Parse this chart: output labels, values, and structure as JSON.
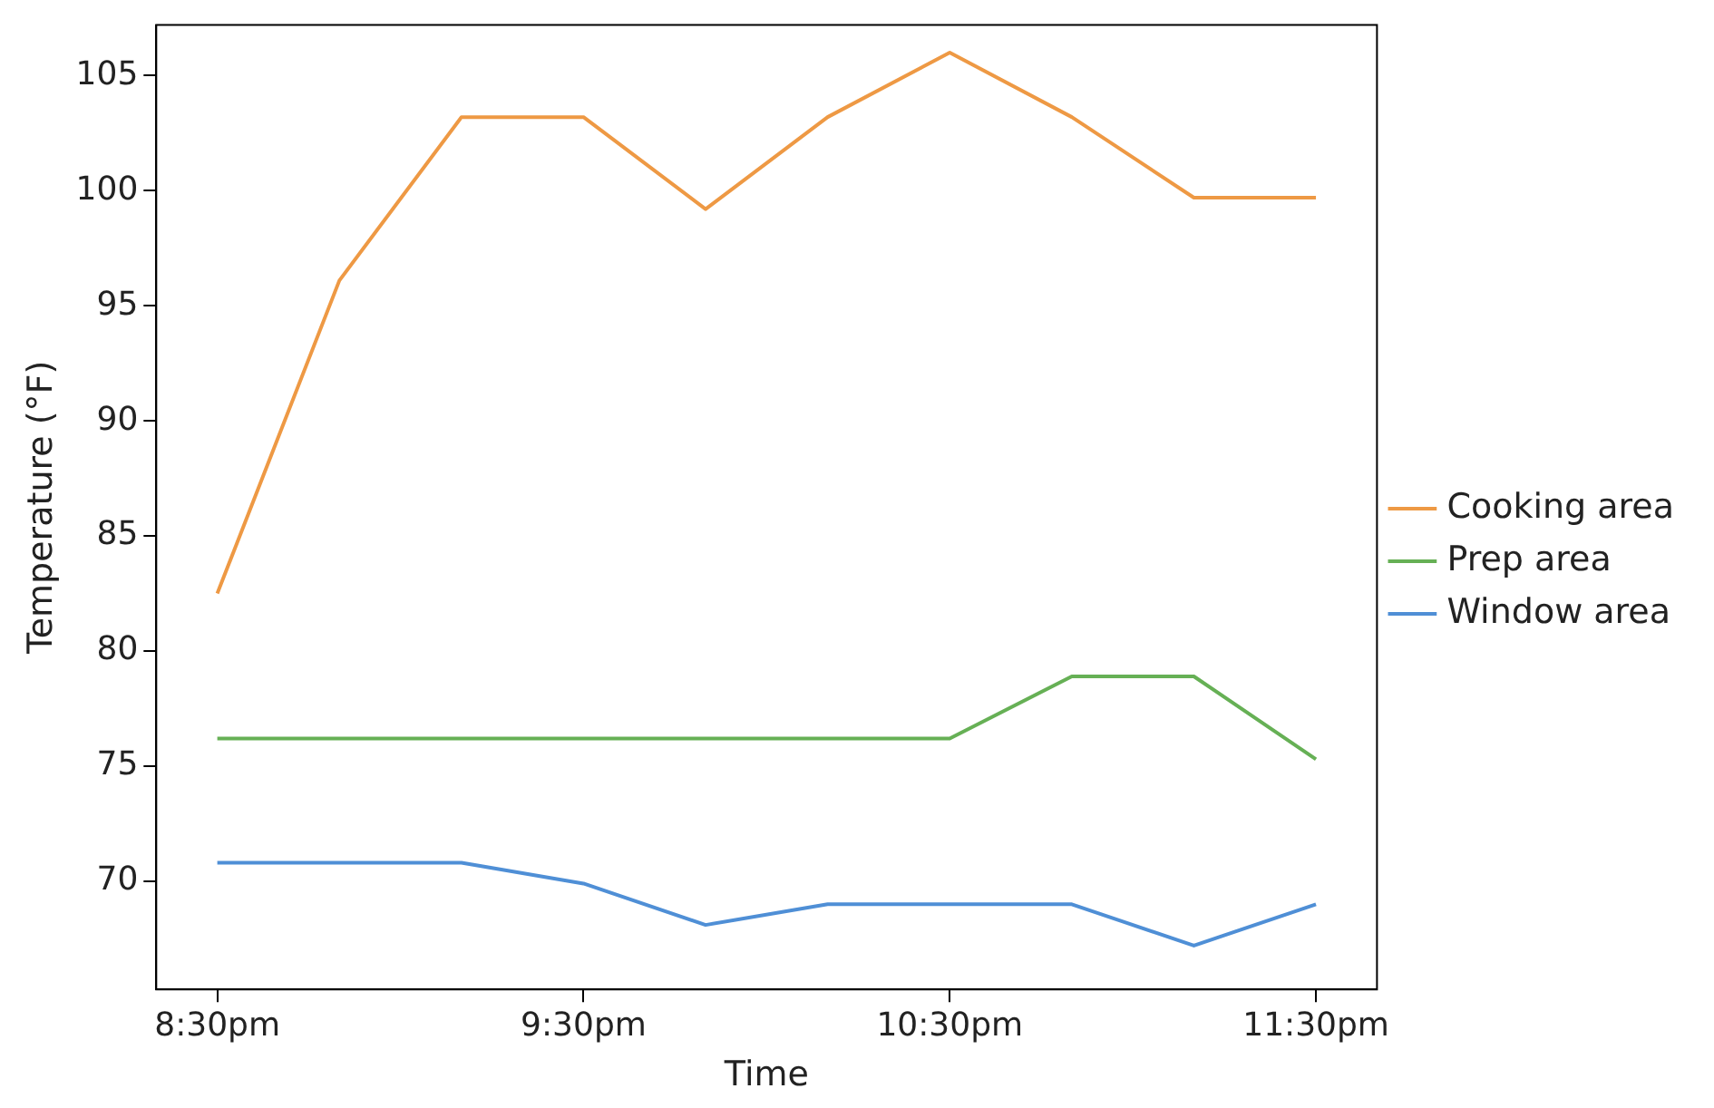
{
  "chart_data": {
    "type": "line",
    "xlabel": "Time",
    "ylabel": "Temperature (°F)",
    "categories": [
      "8:30pm",
      null,
      null,
      "9:30pm",
      null,
      null,
      "10:30pm",
      null,
      null,
      "11:30pm"
    ],
    "series": [
      {
        "name": "Cooking area",
        "color": "#ee9944",
        "values": [
          82.5,
          96.1,
          103.2,
          103.2,
          99.2,
          103.2,
          106.0,
          103.2,
          99.7,
          99.7
        ]
      },
      {
        "name": "Prep area",
        "color": "#66b055",
        "values": [
          76.2,
          76.2,
          76.2,
          76.2,
          76.2,
          76.2,
          76.2,
          78.9,
          78.9,
          75.3
        ]
      },
      {
        "name": "Window area",
        "color": "#4f8fd6",
        "values": [
          70.8,
          70.8,
          70.8,
          69.9,
          68.1,
          69.0,
          69.0,
          69.0,
          67.2,
          69.0
        ]
      }
    ],
    "ylim": [
      65.3,
      107.2
    ],
    "yticks": [
      70,
      75,
      80,
      85,
      90,
      95,
      100,
      105
    ],
    "grid": false,
    "legend": "right",
    "marker": "none",
    "line_style": "solid"
  }
}
